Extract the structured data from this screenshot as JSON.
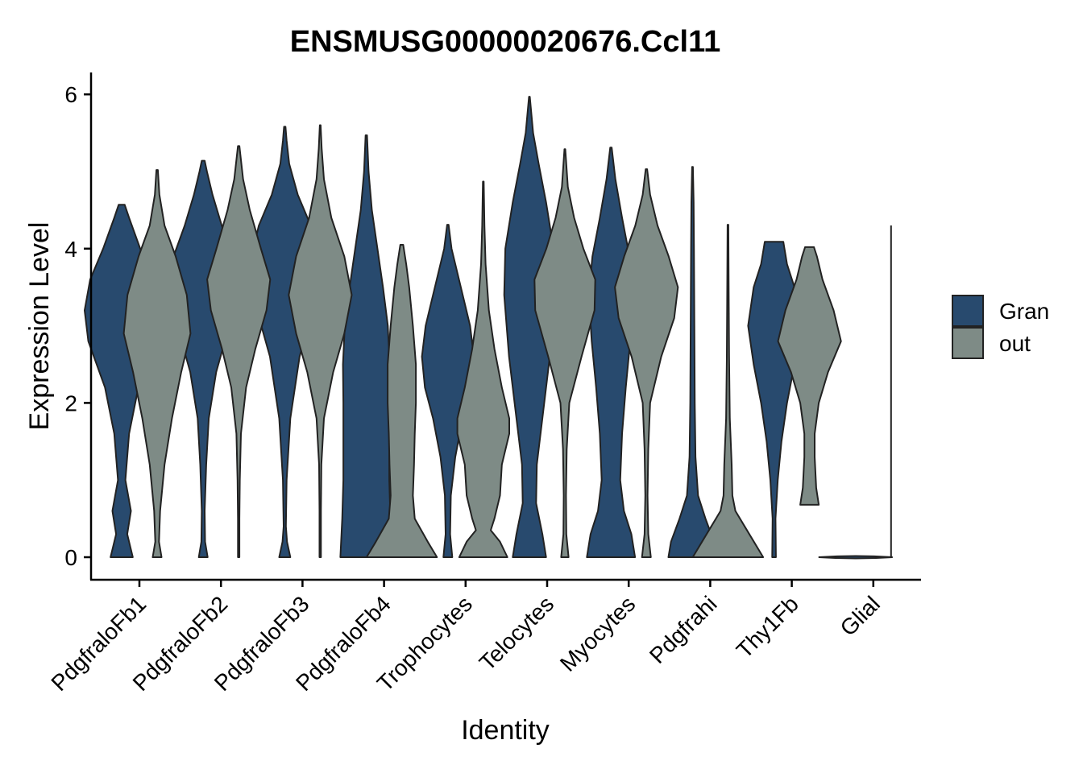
{
  "chart_data": {
    "type": "violin",
    "title": "ENSMUSG00000020676.Ccl11",
    "xlabel": "Identity",
    "ylabel": "Expression Level",
    "ylim": [
      0,
      6
    ],
    "yticks": [
      0,
      2,
      4,
      6
    ],
    "grid": false,
    "legend_position": "right",
    "categories": [
      "PdgfraloFb1",
      "PdgfraloFb2",
      "PdgfraloFb3",
      "PdgfraloFb4",
      "Trophocytes",
      "Telocytes",
      "Myocytes",
      "Pdgfrahi",
      "Thy1Fb",
      "Glial"
    ],
    "series": [
      {
        "name": "Gran",
        "color": "#284A6E",
        "violins": [
          {
            "min": 0,
            "max": 4.57,
            "profile": [
              [
                0,
                0.3
              ],
              [
                0.3,
                0.15
              ],
              [
                0.6,
                0.25
              ],
              [
                1.0,
                0.1
              ],
              [
                1.6,
                0.2
              ],
              [
                2.2,
                0.45
              ],
              [
                2.8,
                0.9
              ],
              [
                3.2,
                1.0
              ],
              [
                3.6,
                0.85
              ],
              [
                4.0,
                0.5
              ],
              [
                4.4,
                0.2
              ],
              [
                4.57,
                0.08
              ]
            ]
          },
          {
            "min": 0,
            "max": 5.14,
            "profile": [
              [
                0,
                0.12
              ],
              [
                0.2,
                0.05
              ],
              [
                0.6,
                0.04
              ],
              [
                1.2,
                0.08
              ],
              [
                1.8,
                0.15
              ],
              [
                2.4,
                0.35
              ],
              [
                3.0,
                0.7
              ],
              [
                3.5,
                0.95
              ],
              [
                3.9,
                0.8
              ],
              [
                4.3,
                0.5
              ],
              [
                4.7,
                0.25
              ],
              [
                5.0,
                0.1
              ],
              [
                5.14,
                0.04
              ]
            ]
          },
          {
            "min": 0,
            "max": 5.58,
            "profile": [
              [
                0,
                0.15
              ],
              [
                0.2,
                0.06
              ],
              [
                0.4,
                0.03
              ],
              [
                1.0,
                0.05
              ],
              [
                1.8,
                0.15
              ],
              [
                2.6,
                0.4
              ],
              [
                3.2,
                0.75
              ],
              [
                3.8,
                0.95
              ],
              [
                4.3,
                0.7
              ],
              [
                4.7,
                0.35
              ],
              [
                5.1,
                0.12
              ],
              [
                5.4,
                0.05
              ],
              [
                5.58,
                0.02
              ]
            ]
          },
          {
            "min": 0,
            "max": 5.47,
            "profile": [
              [
                0,
                0.7
              ],
              [
                0.5,
                0.65
              ],
              [
                1.0,
                0.62
              ],
              [
                1.5,
                0.62
              ],
              [
                2.0,
                0.62
              ],
              [
                2.5,
                0.63
              ],
              [
                3.0,
                0.58
              ],
              [
                3.5,
                0.45
              ],
              [
                4.0,
                0.3
              ],
              [
                4.5,
                0.15
              ],
              [
                5.0,
                0.06
              ],
              [
                5.47,
                0.02
              ]
            ]
          },
          {
            "min": 0,
            "max": 4.31,
            "profile": [
              [
                0,
                0.12
              ],
              [
                0.3,
                0.06
              ],
              [
                0.8,
                0.08
              ],
              [
                1.3,
                0.2
              ],
              [
                1.8,
                0.4
              ],
              [
                2.2,
                0.62
              ],
              [
                2.6,
                0.7
              ],
              [
                3.0,
                0.6
              ],
              [
                3.5,
                0.35
              ],
              [
                4.0,
                0.1
              ],
              [
                4.31,
                0.02
              ]
            ]
          },
          {
            "min": 0,
            "max": 5.97,
            "profile": [
              [
                0,
                0.45
              ],
              [
                0.3,
                0.35
              ],
              [
                0.7,
                0.18
              ],
              [
                1.2,
                0.2
              ],
              [
                1.8,
                0.35
              ],
              [
                2.6,
                0.55
              ],
              [
                3.4,
                0.68
              ],
              [
                4.0,
                0.65
              ],
              [
                4.6,
                0.45
              ],
              [
                5.1,
                0.25
              ],
              [
                5.5,
                0.1
              ],
              [
                5.97,
                0.01
              ]
            ]
          },
          {
            "min": 0,
            "max": 5.31,
            "profile": [
              [
                0,
                0.65
              ],
              [
                0.3,
                0.55
              ],
              [
                0.6,
                0.35
              ],
              [
                1.0,
                0.25
              ],
              [
                1.6,
                0.3
              ],
              [
                2.2,
                0.4
              ],
              [
                2.8,
                0.52
              ],
              [
                3.4,
                0.6
              ],
              [
                3.9,
                0.5
              ],
              [
                4.4,
                0.3
              ],
              [
                4.9,
                0.12
              ],
              [
                5.31,
                0.02
              ]
            ]
          },
          {
            "min": 0,
            "max": 5.06,
            "profile": [
              [
                0,
                0.65
              ],
              [
                0.2,
                0.58
              ],
              [
                0.5,
                0.35
              ],
              [
                0.8,
                0.15
              ],
              [
                1.3,
                0.08
              ],
              [
                2.0,
                0.06
              ],
              [
                3.0,
                0.05
              ],
              [
                4.0,
                0.04
              ],
              [
                4.6,
                0.03
              ],
              [
                5.06,
                0.01
              ]
            ]
          },
          {
            "min": 0,
            "max": 4.09,
            "profile": [
              [
                0,
                0.05
              ],
              [
                0.5,
                0.04
              ],
              [
                1.0,
                0.1
              ],
              [
                1.5,
                0.2
              ],
              [
                2.0,
                0.35
              ],
              [
                2.5,
                0.55
              ],
              [
                3.0,
                0.7
              ],
              [
                3.5,
                0.55
              ],
              [
                3.8,
                0.35
              ],
              [
                4.09,
                0.25
              ]
            ]
          },
          {
            "min": 0,
            "max": 0.02,
            "profile": []
          }
        ]
      },
      {
        "name": "out",
        "color": "#7E8B86",
        "violins": [
          {
            "min": 0,
            "max": 5.02,
            "profile": [
              [
                0,
                0.12
              ],
              [
                0.2,
                0.05
              ],
              [
                0.6,
                0.08
              ],
              [
                1.2,
                0.2
              ],
              [
                1.8,
                0.4
              ],
              [
                2.4,
                0.65
              ],
              [
                2.9,
                0.9
              ],
              [
                3.4,
                0.8
              ],
              [
                3.9,
                0.5
              ],
              [
                4.3,
                0.2
              ],
              [
                4.7,
                0.06
              ],
              [
                5.02,
                0.02
              ]
            ]
          },
          {
            "min": 0,
            "max": 5.33,
            "profile": [
              [
                0,
                0.02
              ],
              [
                0.5,
                0.02
              ],
              [
                1.0,
                0.03
              ],
              [
                1.6,
                0.06
              ],
              [
                2.2,
                0.2
              ],
              [
                2.7,
                0.45
              ],
              [
                3.2,
                0.75
              ],
              [
                3.6,
                0.85
              ],
              [
                4.0,
                0.6
              ],
              [
                4.5,
                0.3
              ],
              [
                4.9,
                0.12
              ],
              [
                5.33,
                0.02
              ]
            ]
          },
          {
            "min": 0,
            "max": 5.6,
            "profile": [
              [
                0,
                0.02
              ],
              [
                0.6,
                0.02
              ],
              [
                1.2,
                0.03
              ],
              [
                1.8,
                0.1
              ],
              [
                2.4,
                0.35
              ],
              [
                2.9,
                0.65
              ],
              [
                3.4,
                0.85
              ],
              [
                3.9,
                0.65
              ],
              [
                4.4,
                0.3
              ],
              [
                4.9,
                0.1
              ],
              [
                5.3,
                0.04
              ],
              [
                5.6,
                0.01
              ]
            ]
          },
          {
            "min": 0,
            "max": 4.05,
            "profile": [
              [
                0,
                0.95
              ],
              [
                0.2,
                0.7
              ],
              [
                0.5,
                0.35
              ],
              [
                0.8,
                0.3
              ],
              [
                1.2,
                0.33
              ],
              [
                1.6,
                0.35
              ],
              [
                2.0,
                0.38
              ],
              [
                2.5,
                0.38
              ],
              [
                3.0,
                0.3
              ],
              [
                3.5,
                0.2
              ],
              [
                3.8,
                0.12
              ],
              [
                4.05,
                0.04
              ]
            ]
          },
          {
            "min": 0,
            "max": 4.87,
            "profile": [
              [
                0,
                0.65
              ],
              [
                0.2,
                0.45
              ],
              [
                0.35,
                0.2
              ],
              [
                0.5,
                0.3
              ],
              [
                0.8,
                0.45
              ],
              [
                1.2,
                0.5
              ],
              [
                1.6,
                0.7
              ],
              [
                1.8,
                0.7
              ],
              [
                2.2,
                0.5
              ],
              [
                2.7,
                0.3
              ],
              [
                3.2,
                0.15
              ],
              [
                3.8,
                0.06
              ],
              [
                4.3,
                0.03
              ],
              [
                4.87,
                0.01
              ]
            ]
          },
          {
            "min": 0,
            "max": 5.29,
            "profile": [
              [
                0,
                0.1
              ],
              [
                0.3,
                0.04
              ],
              [
                0.8,
                0.03
              ],
              [
                1.4,
                0.05
              ],
              [
                2.0,
                0.12
              ],
              [
                2.6,
                0.45
              ],
              [
                3.2,
                0.8
              ],
              [
                3.6,
                0.82
              ],
              [
                4.0,
                0.5
              ],
              [
                4.4,
                0.25
              ],
              [
                4.8,
                0.08
              ],
              [
                5.29,
                0.01
              ]
            ]
          },
          {
            "min": 0,
            "max": 5.03,
            "profile": [
              [
                0,
                0.12
              ],
              [
                0.3,
                0.05
              ],
              [
                0.8,
                0.03
              ],
              [
                1.4,
                0.05
              ],
              [
                2.0,
                0.1
              ],
              [
                2.6,
                0.4
              ],
              [
                3.1,
                0.75
              ],
              [
                3.5,
                0.85
              ],
              [
                3.9,
                0.6
              ],
              [
                4.3,
                0.3
              ],
              [
                4.7,
                0.1
              ],
              [
                5.03,
                0.02
              ]
            ]
          },
          {
            "min": 0,
            "max": 4.31,
            "profile": [
              [
                0,
                0.95
              ],
              [
                0.2,
                0.7
              ],
              [
                0.4,
                0.45
              ],
              [
                0.6,
                0.2
              ],
              [
                0.8,
                0.12
              ],
              [
                1.2,
                0.1
              ],
              [
                1.8,
                0.05
              ],
              [
                2.6,
                0.03
              ],
              [
                3.5,
                0.02
              ],
              [
                4.31,
                0.01
              ]
            ]
          },
          {
            "min": 0.68,
            "max": 4.02,
            "profile": [
              [
                0.68,
                0.25
              ],
              [
                0.9,
                0.18
              ],
              [
                1.3,
                0.14
              ],
              [
                1.6,
                0.14
              ],
              [
                2.0,
                0.25
              ],
              [
                2.4,
                0.5
              ],
              [
                2.8,
                0.85
              ],
              [
                3.2,
                0.65
              ],
              [
                3.6,
                0.35
              ],
              [
                3.9,
                0.2
              ],
              [
                4.02,
                0.12
              ]
            ]
          },
          {
            "min": 0,
            "max": 4.3,
            "profile": []
          }
        ]
      }
    ]
  }
}
